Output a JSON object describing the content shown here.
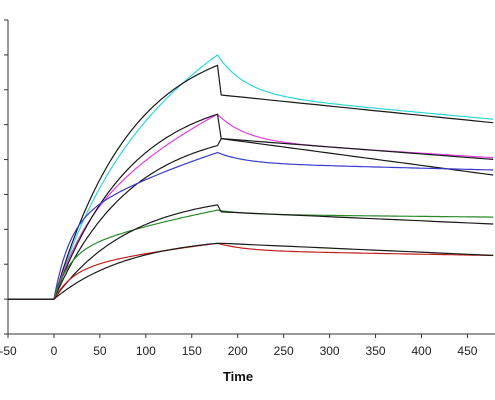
{
  "chart_data": {
    "type": "line",
    "title": "",
    "xlabel": "Time",
    "ylabel": "",
    "xlim": [
      -50,
      480
    ],
    "ylim": [
      -10,
      80
    ],
    "x_ticks": [
      -50,
      0,
      50,
      100,
      150,
      200,
      250,
      300,
      350,
      400,
      450
    ],
    "x_tick_labels": [
      "-50",
      "0",
      "50",
      "100",
      "150",
      "200",
      "250",
      "300",
      "350",
      "400",
      "450"
    ],
    "y_ticks": [
      -10,
      0,
      10,
      20,
      30,
      40,
      50,
      60,
      70,
      80
    ],
    "y_tick_labels": [],
    "grid": false,
    "legend": "none",
    "association_end": 178,
    "series": [
      {
        "kind": "measured",
        "color": "#2fd6d6",
        "peak": 70,
        "fast_fraction": 0.24,
        "fast_rate": 0.018,
        "end": 51.5
      },
      {
        "kind": "fit",
        "color": "#1a1a1a",
        "peak": 67,
        "dip": 58.5,
        "end": 50.5
      },
      {
        "kind": "measured",
        "color": "#e040e0",
        "peak": 53,
        "fast_fraction": 0.2,
        "fast_rate": 0.03,
        "end": 40.5
      },
      {
        "kind": "fit",
        "color": "#1a1a1a",
        "peak": 53,
        "dip": 46,
        "end": 40
      },
      {
        "kind": "fit",
        "color": "#1a1a1a",
        "peak": 44,
        "dip": 46,
        "end": 35.5
      },
      {
        "kind": "measured",
        "color": "#3a3ad0",
        "peak": 42,
        "fast_fraction": 0.3,
        "fast_rate": 0.06,
        "end": 37
      },
      {
        "kind": "measured",
        "color": "#2a8a2a",
        "peak": 25.5,
        "fast_fraction": 0.3,
        "fast_rate": 0.06,
        "end": 23.5
      },
      {
        "kind": "fit",
        "color": "#1a1a1a",
        "peak": 27,
        "dip": 25,
        "end": 21.5
      },
      {
        "kind": "measured",
        "color": "#c02020",
        "peak": 16,
        "fast_fraction": 0.3,
        "fast_rate": 0.05,
        "end": 12.5
      },
      {
        "kind": "fit",
        "color": "#1a1a1a",
        "peak": 16,
        "dip": 16,
        "end": 12.5
      }
    ]
  }
}
